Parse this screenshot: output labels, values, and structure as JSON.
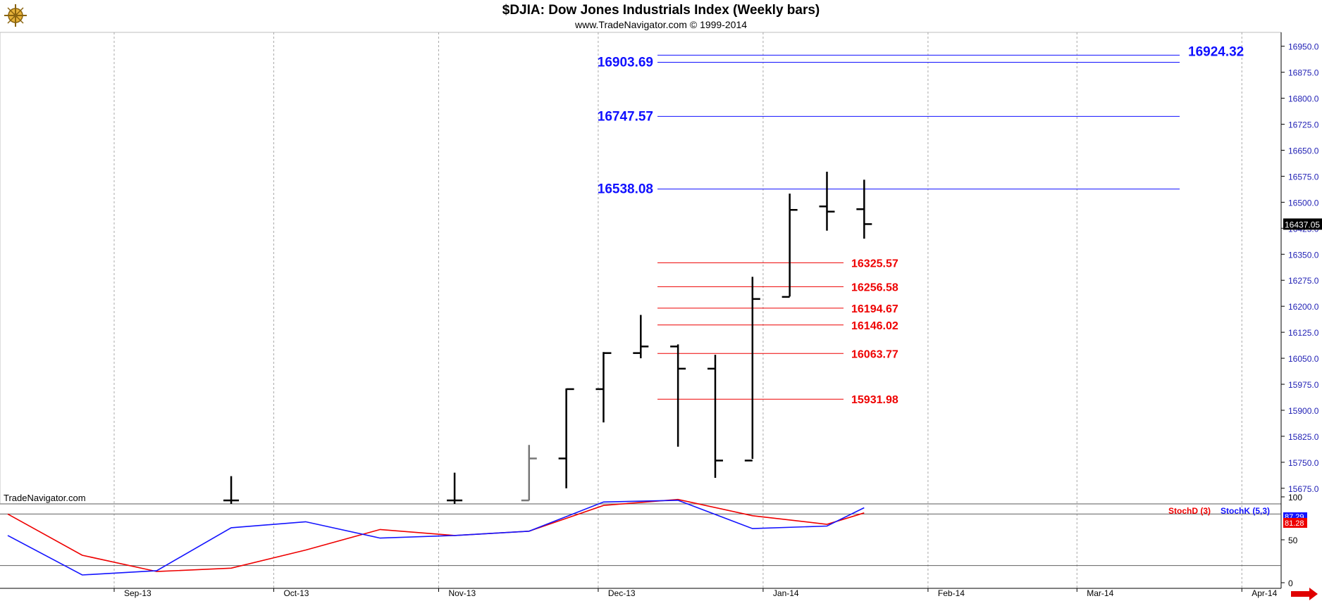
{
  "header": {
    "title": "$DJIA:  Dow Jones Industrials Index  (Weekly bars)",
    "subtitle": "www.TradeNavigator.com © 1999-2014",
    "watermark": "TradeNavigator.com"
  },
  "logo": {
    "icon": "compass-logo-icon"
  },
  "scroll_arrow": {
    "icon": "arrow-right-icon",
    "color": "#e00000"
  },
  "colors": {
    "background": "#ffffff",
    "price_axis_text": "#1f1fb4",
    "resistance": "#1010ff",
    "support": "#ee0000",
    "bar": "#000000",
    "grid": "#a8a8a8"
  },
  "chart_data": [
    {
      "type": "ohlc",
      "ylim": [
        15630,
        16990
      ],
      "x_tick_labels": [
        "Sep-13",
        "Oct-13",
        "Nov-13",
        "Dec-13",
        "Jan-14",
        "Feb-14",
        "Mar-14",
        "Apr-14"
      ],
      "y_ticks": [
        "16950.0",
        "16875.0",
        "16800.0",
        "16725.0",
        "16650.0",
        "16575.0",
        "16500.0",
        "16425.0",
        "16350.0",
        "16275.0",
        "16200.0",
        "16125.0",
        "16050.0",
        "15975.0",
        "15900.0",
        "15825.0",
        "15750.0",
        "15675.0"
      ],
      "last_price": "16437.05",
      "bars": [
        {
          "date": "2013-09-23",
          "open": 15640,
          "high": 15710,
          "low": 15630,
          "close": 15640
        },
        {
          "date": "2013-11-04",
          "open": 15640,
          "high": 15720,
          "low": 15630,
          "close": 15640
        },
        {
          "date": "2013-11-18",
          "open": 15640,
          "high": 15800,
          "low": 15640,
          "close": 15761
        },
        {
          "date": "2013-11-25",
          "open": 15761,
          "high": 15963,
          "low": 15675,
          "close": 15961
        },
        {
          "date": "2013-12-02",
          "open": 15961,
          "high": 16068,
          "low": 15865,
          "close": 16065
        },
        {
          "date": "2013-12-09",
          "open": 16065,
          "high": 16175,
          "low": 16050,
          "close": 16084
        },
        {
          "date": "2013-12-16",
          "open": 16084,
          "high": 16090,
          "low": 15795,
          "close": 16020
        },
        {
          "date": "2013-12-23",
          "open": 16020,
          "high": 16060,
          "low": 15705,
          "close": 15755
        },
        {
          "date": "2013-12-30",
          "open": 15755,
          "high": 16285,
          "low": 15760,
          "close": 16221
        },
        {
          "date": "2014-01-06",
          "open": 16227,
          "high": 16525,
          "low": 16228,
          "close": 16478
        },
        {
          "date": "2014-01-13",
          "open": 16488,
          "high": 16588,
          "low": 16418,
          "close": 16473
        },
        {
          "date": "2014-01-20",
          "open": 16480,
          "high": 16565,
          "low": 16395,
          "close": 16437
        }
      ],
      "resistance_levels": [
        16924.32,
        16903.69,
        16747.57,
        16538.08
      ],
      "resistance_labels": [
        "16924.32",
        "16903.69",
        "16747.57",
        "16538.08"
      ],
      "support_levels": [
        16325.57,
        16256.58,
        16194.67,
        16146.02,
        16063.77,
        15931.98
      ],
      "support_labels": [
        "16325.57",
        "16256.58",
        "16194.67",
        "16146.02",
        "16063.77",
        "15931.98"
      ]
    },
    {
      "type": "line",
      "ylim": [
        0,
        100
      ],
      "y_ticks": [
        "100",
        "50",
        "0"
      ],
      "reference_lines": [
        80,
        20
      ],
      "x": [
        "2013-08-12",
        "2013-08-26",
        "2013-09-09",
        "2013-09-23",
        "2013-10-07",
        "2013-10-21",
        "2013-11-04",
        "2013-11-18",
        "2013-12-02",
        "2013-12-16",
        "2013-12-30",
        "2014-01-13",
        "2014-01-20"
      ],
      "series": [
        {
          "name": "StochD (3)",
          "color": "#ee0000",
          "values": [
            80,
            32,
            13,
            17,
            38,
            62,
            55,
            60,
            90,
            97,
            78,
            68,
            81.28
          ],
          "display_value": "81.28"
        },
        {
          "name": "StochK (5,3)",
          "color": "#1414ff",
          "values": [
            55,
            9,
            14,
            64,
            71,
            52,
            55,
            60,
            94,
            96,
            63,
            66,
            87.29
          ],
          "display_value": "87.29"
        }
      ]
    }
  ]
}
